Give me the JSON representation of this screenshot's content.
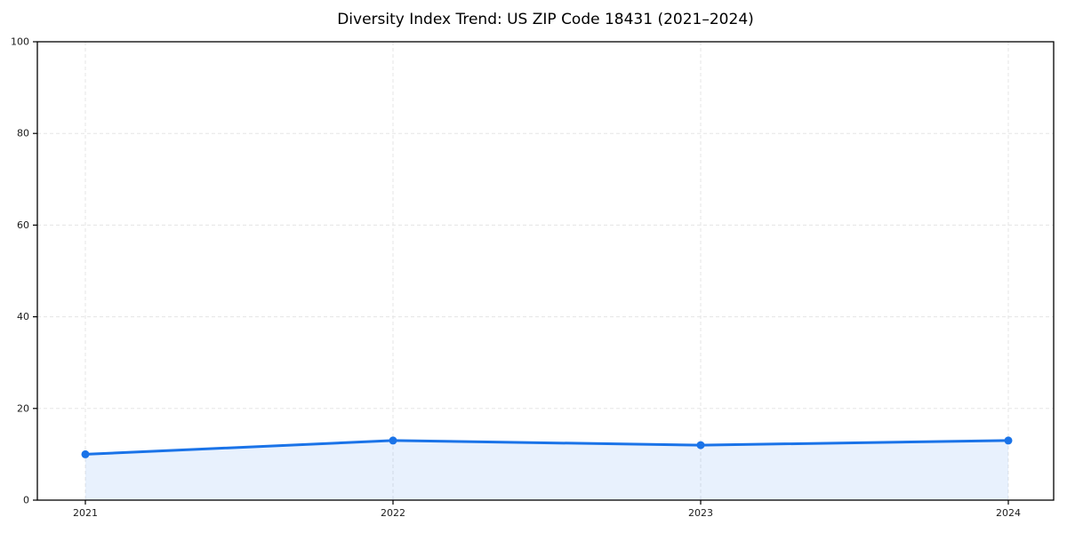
{
  "chart_data": {
    "type": "line",
    "title": "Diversity Index Trend: US ZIP Code 18431 (2021–2024)",
    "x": [
      2021,
      2022,
      2023,
      2024
    ],
    "series": [
      {
        "name": "Diversity Index",
        "values": [
          10,
          13,
          12,
          13
        ]
      }
    ],
    "xlabel": "",
    "ylabel": "",
    "ylim": [
      0,
      100
    ],
    "yticks": [
      0,
      20,
      40,
      60,
      80,
      100
    ],
    "xtick_labels": [
      "2021",
      "2022",
      "2023",
      "2024"
    ],
    "ytick_labels": [
      "0",
      "20",
      "40",
      "60",
      "80",
      "100"
    ],
    "grid": true,
    "grid_style": "dashed",
    "legend": false,
    "area_fill": true,
    "marker": "circle",
    "colors": {
      "line": "#1a73e8",
      "marker": "#1a73e8",
      "area_fill": "rgba(26,115,232,0.10)",
      "grid": "#e5e5e5",
      "spine": "#000000",
      "tick_label": "#1a1a1a",
      "background": "#ffffff"
    }
  }
}
